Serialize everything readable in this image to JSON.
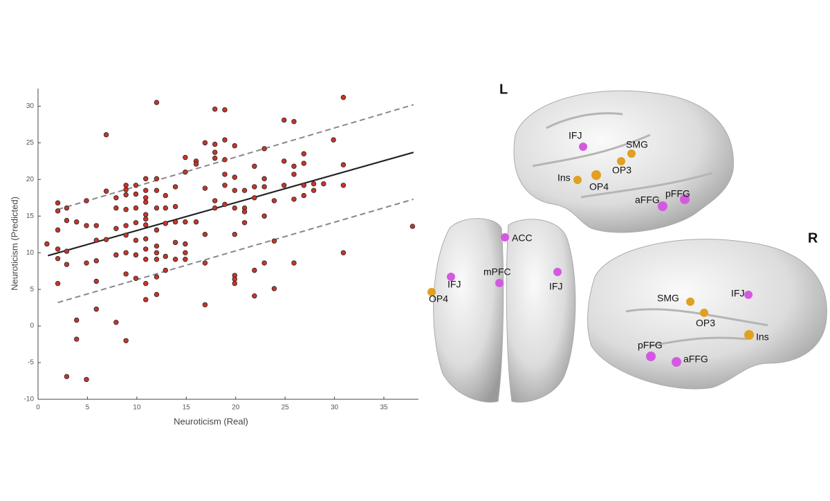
{
  "chart_data": {
    "type": "scatter",
    "xlabel": "Neuroticism (Real)",
    "ylabel": "Neuroticism (Predicted)",
    "xlim": [
      0,
      38.5
    ],
    "ylim": [
      -10,
      32.4
    ],
    "xticks": [
      0,
      5,
      10,
      15,
      20,
      25,
      30,
      35
    ],
    "yticks": [
      -10,
      -5,
      0,
      5,
      10,
      15,
      20,
      25,
      30
    ],
    "series": [
      {
        "color": "#c8352a",
        "x": [
          0.9,
          2,
          2,
          2,
          2,
          2,
          2,
          2.9,
          2.9,
          2.9,
          2.9,
          2.9,
          3.9,
          3.9,
          3.9,
          4.9,
          4.9,
          4.9,
          4.9,
          5.9,
          5.9,
          5.9,
          5.9,
          5.9,
          6.9,
          6.9,
          6.9,
          7.9,
          7.9,
          7.9,
          7.9,
          7.9,
          8.9,
          8.9,
          8.9,
          8.9,
          8.9,
          8.9,
          8.9,
          8.9,
          8.9,
          9.9,
          9.9,
          9.9,
          9.9,
          9.9,
          9.9,
          9.9,
          10.9,
          10.9,
          10.9,
          10.9,
          10.9,
          10.9,
          10.9,
          10.9,
          10.9,
          10.9,
          10.9,
          10.9,
          12,
          12,
          12,
          12,
          12,
          12,
          12,
          12,
          12,
          12,
          12.9,
          12.9,
          12.9,
          12.9,
          12.9,
          13.9,
          13.9,
          13.9,
          13.9,
          13.9,
          14.9,
          14.9,
          14.9,
          14.9,
          14.9,
          14.9,
          16,
          16,
          16,
          16.9,
          16.9,
          16.9,
          16.9,
          16.9,
          17.9,
          17.9,
          17.9,
          17.9,
          17.9,
          17.9,
          18.9,
          18.9,
          18.9,
          18.9,
          18.9,
          18.9,
          19.9,
          19.9,
          19.9,
          19.9,
          19.9,
          19.9,
          19.9,
          19.9,
          20.9,
          20.9,
          20.9,
          20.9,
          21.9,
          21.9,
          21.9,
          21.9,
          21.9,
          22.9,
          22.9,
          22.9,
          22.9,
          22.9,
          23.9,
          23.9,
          23.9,
          24.9,
          24.9,
          24.9,
          25.9,
          25.9,
          25.9,
          25.9,
          25.9,
          26.9,
          26.9,
          26.9,
          26.9,
          27.9,
          27.9,
          28.9,
          29.9,
          30.9,
          30.9,
          30.9,
          30.9,
          37.9
        ],
        "values": [
          11.2,
          16.8,
          15.7,
          13.1,
          10.5,
          9.2,
          5.8,
          16.1,
          14.4,
          10.2,
          8.4,
          -6.9,
          0.8,
          -1.8,
          14.2,
          17.1,
          13.7,
          -7.3,
          8.6,
          13.7,
          11.7,
          8.9,
          6.1,
          2.3,
          26.1,
          18.4,
          11.8,
          17.5,
          16.1,
          13.3,
          9.7,
          0.5,
          19.2,
          18.6,
          17.9,
          15.9,
          13.7,
          12.4,
          10,
          7.1,
          -2,
          19.2,
          18,
          16.1,
          14.1,
          11.7,
          9.7,
          6.5,
          20.1,
          18.5,
          17.5,
          16.9,
          15.2,
          14.6,
          13.8,
          11.9,
          10.5,
          9.1,
          5.8,
          3.6,
          30.5,
          20.1,
          18.5,
          16.1,
          13.1,
          10.9,
          10,
          9.1,
          6.7,
          4.3,
          17.8,
          16.1,
          14,
          9.5,
          7.6,
          19,
          16.3,
          14.2,
          11.4,
          9.1,
          23,
          21,
          14.2,
          11.2,
          10,
          9.1,
          22.5,
          22.1,
          14.2,
          25,
          18.8,
          12.5,
          8.6,
          2.9,
          29.6,
          24.8,
          23.7,
          22.9,
          17.1,
          16.1,
          29.5,
          25.4,
          22.7,
          20.7,
          19.2,
          16.6,
          24.6,
          20.3,
          18.5,
          16.1,
          12.5,
          6.9,
          6.4,
          5.8,
          18.5,
          16.1,
          15.6,
          14.1,
          21.8,
          19,
          17.5,
          7.6,
          4.1,
          24.2,
          20.1,
          19,
          15,
          8.6,
          17.1,
          11.6,
          5.1,
          28.1,
          22.5,
          19.2,
          27.9,
          21.8,
          20.7,
          17.3,
          8.6,
          23.5,
          22.2,
          19.2,
          17.8,
          18.5,
          19.4,
          19.4,
          25.4,
          31.2,
          22,
          19.2,
          10,
          13.6
        ]
      }
    ],
    "lines": [
      {
        "x": [
          1,
          38
        ],
        "values": [
          9.6,
          23.7
        ],
        "color": "#222222",
        "style": "solid"
      },
      {
        "x": [
          2,
          38
        ],
        "values": [
          15.9,
          30.2
        ],
        "color": "#888888",
        "style": "dashed"
      },
      {
        "x": [
          2,
          38
        ],
        "values": [
          3.2,
          17.3
        ],
        "color": "#888888",
        "style": "dashed"
      }
    ]
  },
  "diagram": {
    "left_view": "L",
    "right_view": "R",
    "left_labels": [
      "IFJ",
      "SMG",
      "OP3",
      "Ins",
      "OP4",
      "aFFG",
      "pFFG"
    ],
    "top_labels": [
      "ACC",
      "IFJ",
      "OP4",
      "mPFC",
      "IFJ"
    ],
    "right_labels": [
      "SMG",
      "IFJ",
      "OP3",
      "Ins",
      "pFFG",
      "aFFG"
    ]
  }
}
